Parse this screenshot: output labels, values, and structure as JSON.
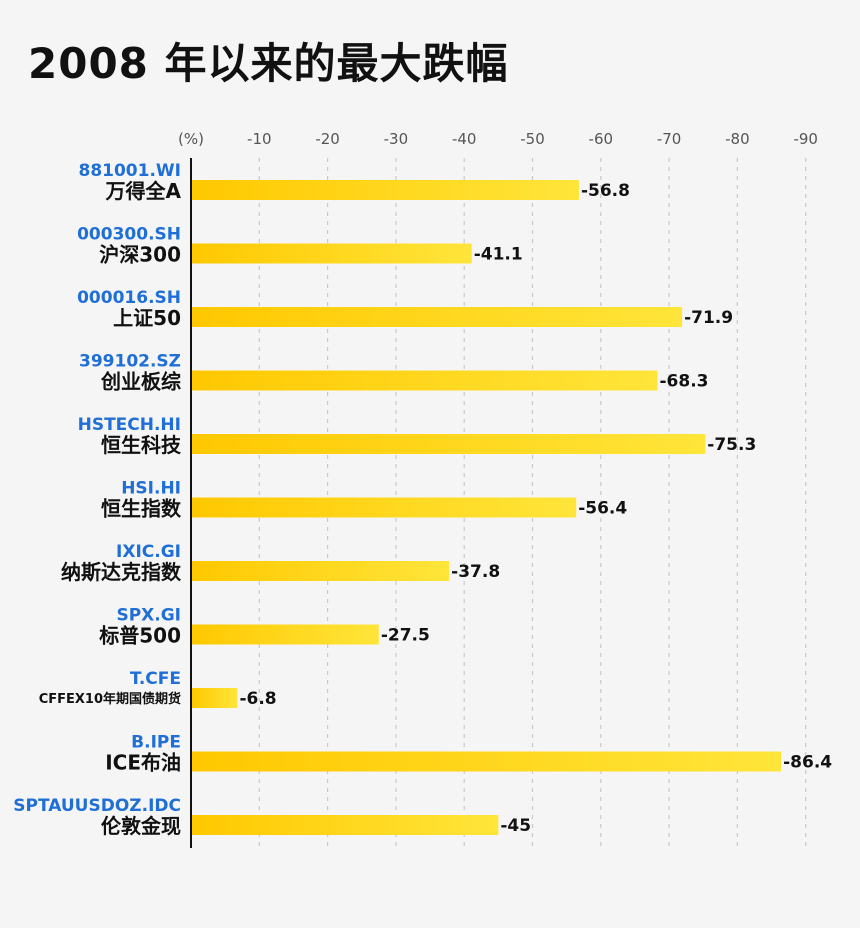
{
  "title": "2008 年以来的最大跌幅",
  "chart_data": {
    "type": "bar",
    "orientation": "horizontal",
    "title": "2008 年以来的最大跌幅",
    "unit": "(%)",
    "xlim": [
      0,
      -95
    ],
    "ticks": [
      -10,
      -20,
      -30,
      -40,
      -50,
      -60,
      -70,
      -80,
      -90
    ],
    "grid": true,
    "colors": {
      "bar_start": "#ffc800",
      "bar_end": "#ffe53a",
      "code": "#1f6fd6",
      "axis": "#111111",
      "grid": "#c9c9c9"
    },
    "categories": [
      {
        "code": "881001.WI",
        "name": "万得全A",
        "value": -56.8
      },
      {
        "code": "000300.SH",
        "name": "沪深300",
        "value": -41.1
      },
      {
        "code": "000016.SH",
        "name": "上证50",
        "value": -71.9
      },
      {
        "code": "399102.SZ",
        "name": "创业板综",
        "value": -68.3
      },
      {
        "code": "HSTECH.HI",
        "name": "恒生科技",
        "value": -75.3
      },
      {
        "code": "HSI.HI",
        "name": "恒生指数",
        "value": -56.4
      },
      {
        "code": "IXIC.GI",
        "name": "纳斯达克指数",
        "value": -37.8
      },
      {
        "code": "SPX.GI",
        "name": "标普500",
        "value": -27.5
      },
      {
        "code": "T.CFE",
        "name": "CFFEX10年期国债期货",
        "value": -6.8
      },
      {
        "code": "B.IPE",
        "name": "ICE布油",
        "value": -86.4
      },
      {
        "code": "SPTAUUSDOZ.IDC",
        "name": "伦敦金现",
        "value": -45
      }
    ]
  }
}
